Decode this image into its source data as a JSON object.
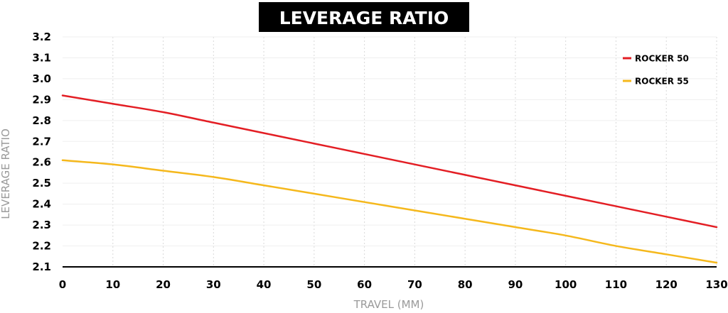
{
  "chart_data": {
    "type": "line",
    "title": "LEVERAGE RATIO",
    "xlabel": "TRAVEL (MM)",
    "ylabel": "LEVERAGE RATIO",
    "xlim": [
      0,
      130
    ],
    "ylim": [
      2.1,
      3.2
    ],
    "x_ticks": [
      "0",
      "10",
      "20",
      "30",
      "40",
      "50",
      "60",
      "70",
      "80",
      "90",
      "100",
      "110",
      "120",
      "130"
    ],
    "y_ticks": [
      "3.2",
      "3.1",
      "3.0",
      "2.9",
      "2.8",
      "2.7",
      "2.6",
      "2.5",
      "2.4",
      "2.3",
      "2.2",
      "2.1"
    ],
    "grid": true,
    "legend_position": "top-right",
    "series": [
      {
        "name": "ROCKER 50",
        "color": "#e31e24",
        "x": [
          0,
          10,
          20,
          30,
          40,
          50,
          60,
          70,
          80,
          90,
          100,
          110,
          120,
          130
        ],
        "y": [
          2.92,
          2.88,
          2.84,
          2.79,
          2.74,
          2.69,
          2.64,
          2.59,
          2.54,
          2.49,
          2.44,
          2.39,
          2.34,
          2.29
        ]
      },
      {
        "name": "ROCKER 55",
        "color": "#f5b81c",
        "x": [
          0,
          10,
          20,
          30,
          40,
          50,
          60,
          70,
          80,
          90,
          100,
          110,
          120,
          130
        ],
        "y": [
          2.61,
          2.59,
          2.56,
          2.53,
          2.49,
          2.45,
          2.41,
          2.37,
          2.33,
          2.29,
          2.25,
          2.2,
          2.16,
          2.12
        ]
      }
    ]
  }
}
